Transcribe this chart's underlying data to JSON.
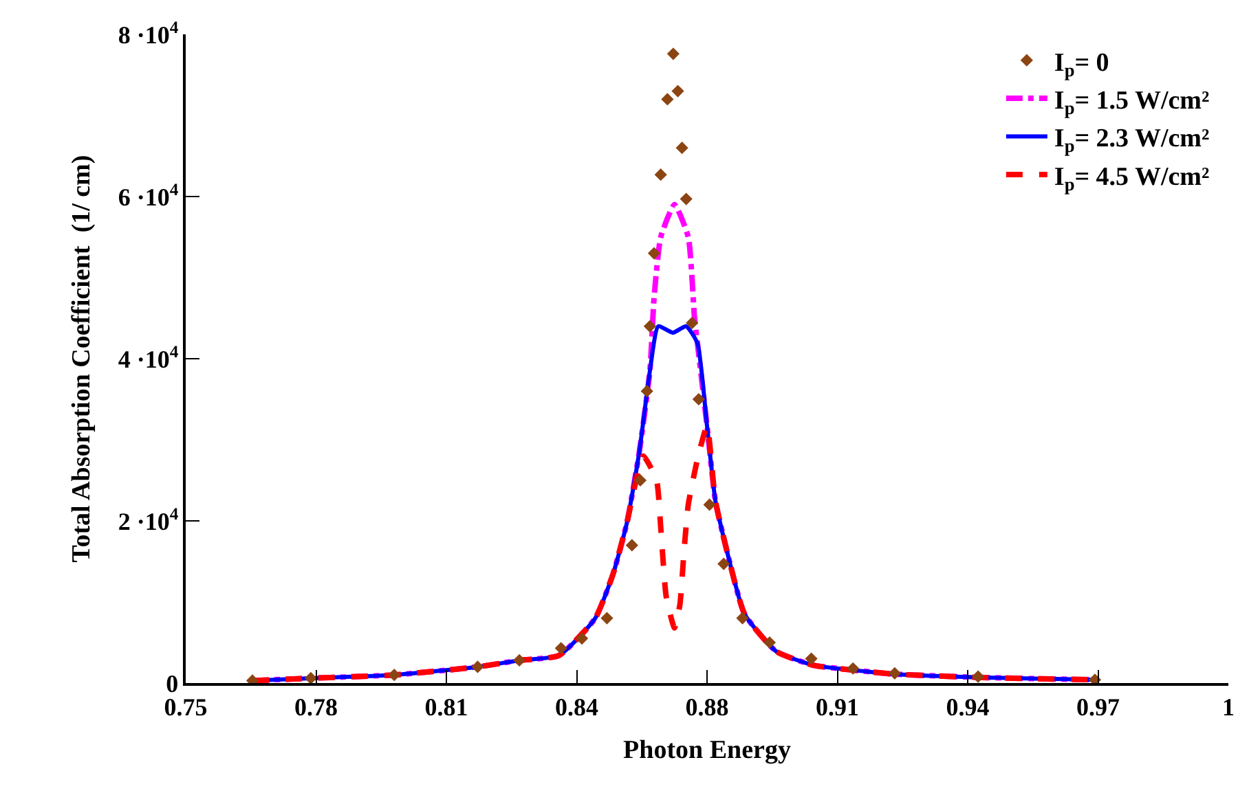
{
  "chart_data": {
    "type": "line",
    "xlabel": "Photon Energy",
    "ylabel": "Total Absorption Coefficient  (1/ cm)",
    "xlim": [
      0.75,
      1
    ],
    "ylim": [
      0,
      80000
    ],
    "xticks": [
      {
        "value": 0.75,
        "label": "0.75"
      },
      {
        "value": 0.78125,
        "label": "0.78"
      },
      {
        "value": 0.8125,
        "label": "0.81"
      },
      {
        "value": 0.84375,
        "label": "0.84"
      },
      {
        "value": 0.875,
        "label": "0.88"
      },
      {
        "value": 0.90625,
        "label": "0.91"
      },
      {
        "value": 0.9375,
        "label": "0.94"
      },
      {
        "value": 0.96875,
        "label": "0.97"
      },
      {
        "value": 1,
        "label": "1"
      }
    ],
    "yticks": [
      0,
      {
        "value": 20000,
        "label": "2 ·10$^{4}$"
      },
      {
        "value": 40000,
        "label": "4 ·10$^{4}$"
      },
      {
        "value": 60000,
        "label": "6 ·10$^{4}$"
      },
      {
        "value": 80000,
        "label": "8 ·10$^{4}$"
      }
    ],
    "legend": "top right",
    "series": [
      {
        "name": "I$_{p}$= 0",
        "type": "scatter",
        "marker": "diamond",
        "color": "#8b4513",
        "x": [
          0.766,
          0.78,
          0.8,
          0.82,
          0.83,
          0.84,
          0.845,
          0.851,
          0.857,
          0.859,
          0.8606,
          0.8613,
          0.8623,
          0.8639,
          0.8655,
          0.8669,
          0.868,
          0.869,
          0.87,
          0.8714,
          0.873,
          0.8756,
          0.879,
          0.8835,
          0.89,
          0.9,
          0.91,
          0.92,
          0.94,
          0.968
        ],
        "values": [
          300,
          600,
          1000,
          2000,
          2800,
          4300,
          5500,
          8000,
          17000,
          25000,
          36000,
          44000,
          53000,
          62700,
          72000,
          77600,
          73000,
          66000,
          59700,
          44400,
          35000,
          22000,
          14700,
          8000,
          5000,
          3000,
          1800,
          1200,
          800,
          400
        ]
      },
      {
        "name": "I$_{p}$= 1.5 W/cm²",
        "line_style": "dashdot",
        "color": "#ff00ff",
        "x": [
          0.766,
          0.78,
          0.8,
          0.82,
          0.83,
          0.8395,
          0.8482,
          0.8525,
          0.8558,
          0.8587,
          0.8613,
          0.8623,
          0.8639,
          0.8672,
          0.8705,
          0.872,
          0.8727,
          0.875,
          0.877,
          0.88,
          0.884,
          0.8916,
          0.9005,
          0.91,
          0.92,
          0.94,
          0.968
        ],
        "values": [
          300,
          600,
          1000,
          2000,
          2800,
          3400,
          8000,
          13500,
          19800,
          28300,
          38500,
          47500,
          55000,
          59000,
          55000,
          45000,
          41900,
          31700,
          22500,
          15800,
          8500,
          3900,
          2200,
          1600,
          1100,
          700,
          400
        ]
      },
      {
        "name": "I$_{p}$= 2.3 W/cm²",
        "line_style": "solid",
        "color": "#0000ff",
        "x": [
          0.766,
          0.78,
          0.8,
          0.82,
          0.83,
          0.8395,
          0.8482,
          0.8525,
          0.8558,
          0.8587,
          0.8613,
          0.8633,
          0.8668,
          0.87,
          0.8727,
          0.875,
          0.877,
          0.88,
          0.884,
          0.8916,
          0.9005,
          0.91,
          0.92,
          0.94,
          0.968
        ],
        "values": [
          300,
          600,
          1000,
          2000,
          2800,
          3400,
          8000,
          13500,
          19800,
          28300,
          38500,
          44000,
          43200,
          44000,
          41900,
          31700,
          22500,
          15800,
          8500,
          3900,
          2200,
          1600,
          1100,
          700,
          400
        ]
      },
      {
        "name": "I$_{p}$= 4.5 W/cm²",
        "line_style": "dashed",
        "color": "#ff0000",
        "x": [
          0.766,
          0.78,
          0.8,
          0.82,
          0.83,
          0.8395,
          0.8482,
          0.8525,
          0.8558,
          0.8597,
          0.8629,
          0.8639,
          0.8652,
          0.8672,
          0.8685,
          0.8695,
          0.8705,
          0.8727,
          0.875,
          0.877,
          0.88,
          0.884,
          0.8916,
          0.9005,
          0.91,
          0.92,
          0.94,
          0.968
        ],
        "values": [
          300,
          600,
          1000,
          2000,
          2800,
          3400,
          8000,
          13500,
          19800,
          28000,
          25000,
          19200,
          10700,
          6800,
          9700,
          16400,
          22000,
          27600,
          31700,
          22500,
          15800,
          8500,
          3900,
          2200,
          1600,
          1100,
          700,
          400
        ]
      }
    ]
  }
}
